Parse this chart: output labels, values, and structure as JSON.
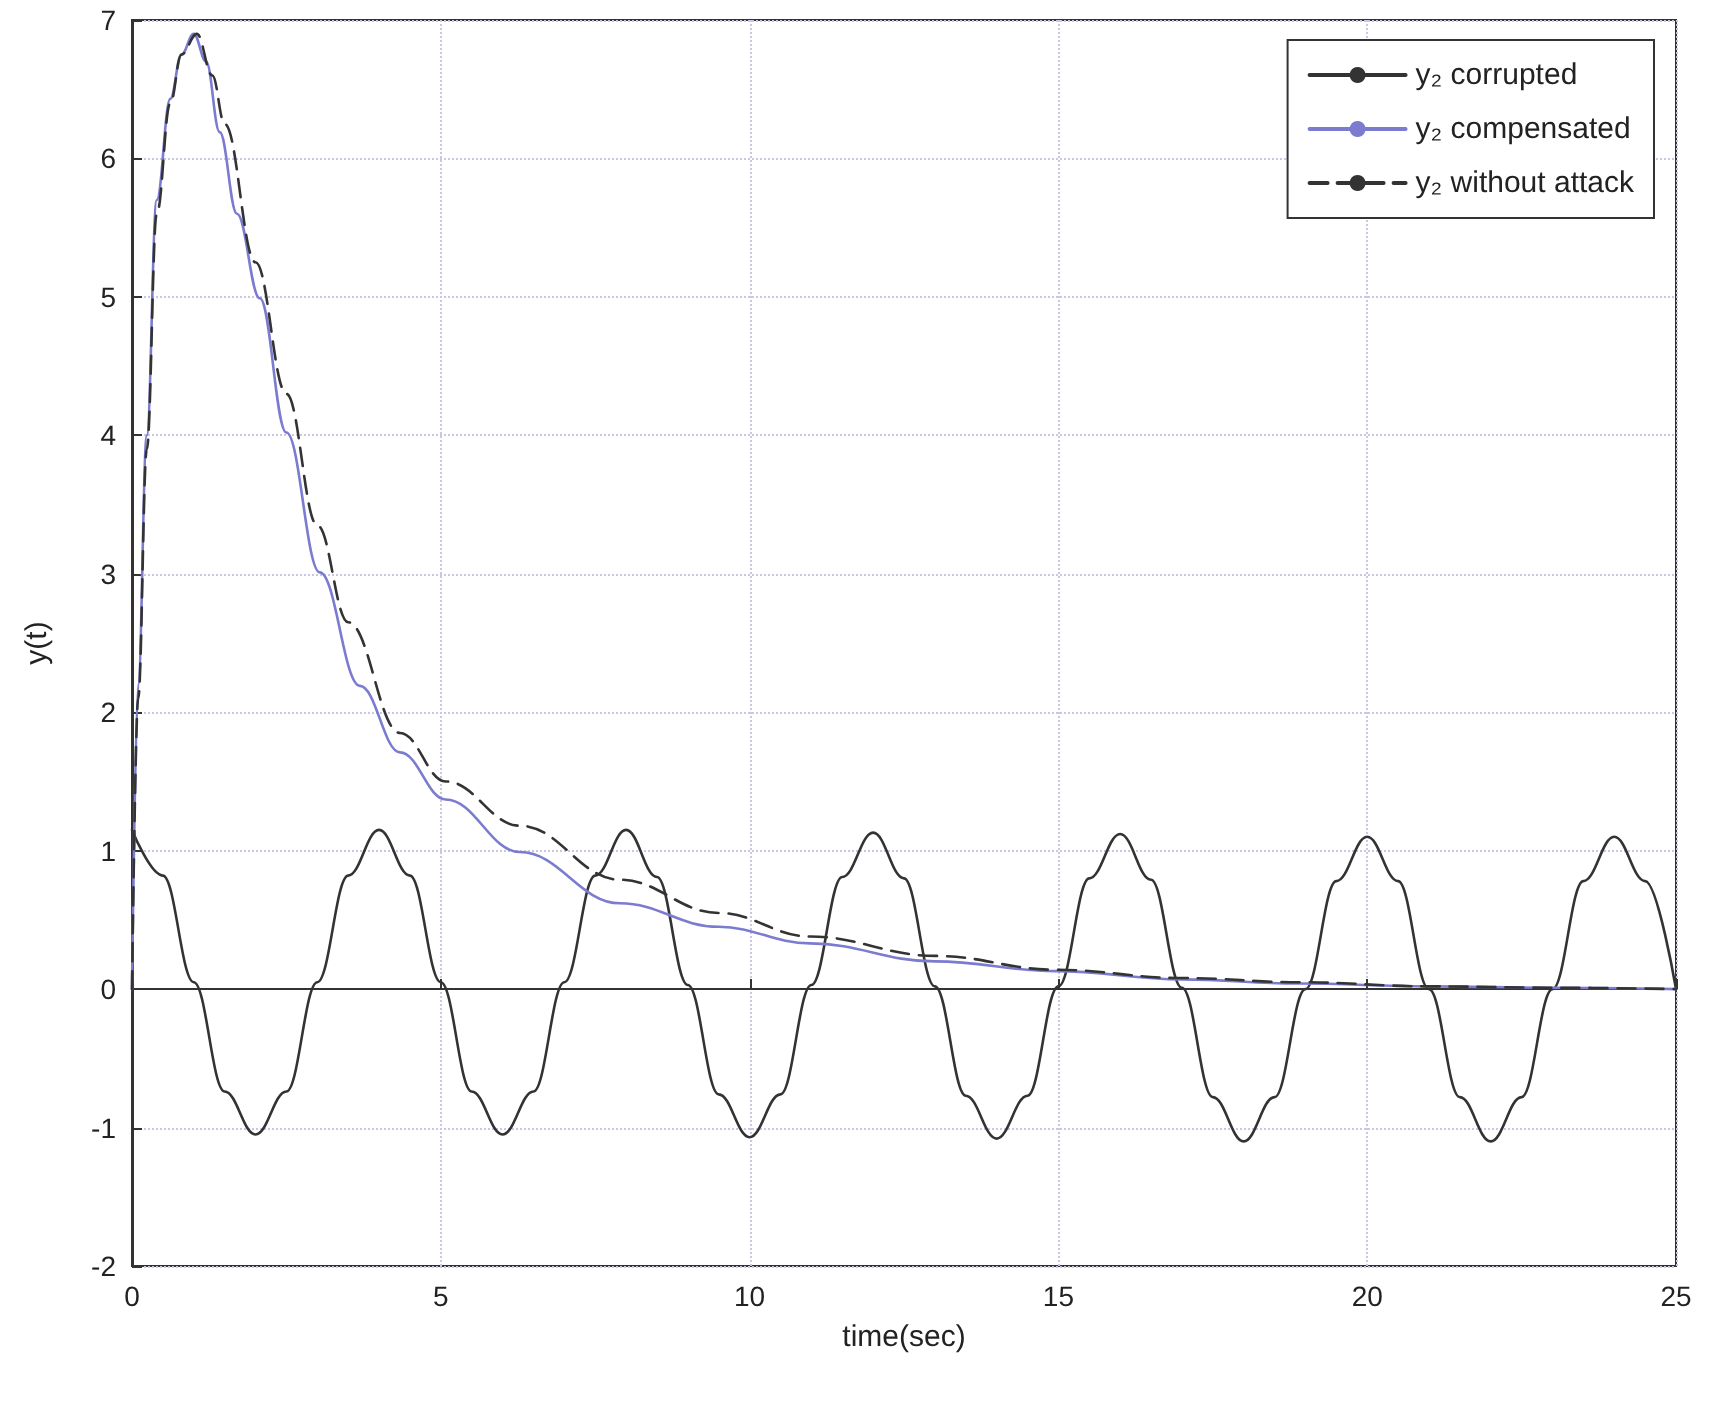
{
  "chart_data": {
    "type": "line",
    "xlabel": "time(sec)",
    "ylabel": "y(t)",
    "xlim": [
      0,
      25
    ],
    "xticks": [
      0,
      5,
      10,
      15,
      20,
      25
    ],
    "ylim": [
      -2,
      7
    ],
    "yticks": [
      -2,
      -1,
      0,
      1,
      2,
      3,
      4,
      5,
      6,
      7
    ],
    "grid": true,
    "legend": "top right",
    "series": [
      {
        "name": "y₂ corrupted",
        "color": "#333333",
        "line_style": "solid",
        "x": [
          0,
          0.5,
          1,
          1.5,
          2,
          2.5,
          3,
          3.5,
          4,
          4.5,
          5,
          5.5,
          6,
          6.5,
          7,
          7.5,
          8,
          8.5,
          9,
          9.5,
          10,
          10.5,
          11,
          11.5,
          12,
          12.5,
          13,
          13.5,
          14,
          14.5,
          15,
          15.5,
          16,
          16.5,
          17,
          17.5,
          18,
          18.5,
          19,
          19.5,
          20,
          20.5,
          21,
          21.5,
          22,
          22.5,
          23,
          23.5,
          24,
          24.5,
          25
        ],
        "values": [
          1.15,
          0.82,
          0.05,
          -0.74,
          -1.05,
          -0.74,
          0.05,
          0.82,
          1.15,
          0.82,
          0.05,
          -0.74,
          -1.05,
          -0.74,
          0.05,
          0.82,
          1.15,
          0.81,
          0.03,
          -0.76,
          -1.07,
          -0.76,
          0.03,
          0.81,
          1.13,
          0.8,
          0.02,
          -0.77,
          -1.08,
          -0.77,
          0.02,
          0.8,
          1.12,
          0.79,
          0.01,
          -0.78,
          -1.1,
          -0.78,
          0,
          0.78,
          1.1,
          0.78,
          0,
          -0.78,
          -1.1,
          -0.78,
          0,
          0.78,
          1.1,
          0.78,
          0
        ]
      },
      {
        "name": "y₂ compensated",
        "color": "#7b7bd0",
        "line_style": "solid",
        "x": [
          0,
          0.1,
          0.24,
          0.4,
          0.62,
          0.8,
          1,
          1.2,
          1.42,
          1.7,
          2.07,
          2.5,
          3.04,
          3.69,
          4.34,
          5.08,
          6.28,
          7.9,
          9.5,
          10.98,
          13,
          14.96,
          17,
          18.9,
          21,
          23,
          25
        ],
        "values": [
          0,
          2.2,
          4,
          5.7,
          6.43,
          6.75,
          6.9,
          6.7,
          6.19,
          5.6,
          4.99,
          4.02,
          3.01,
          2.19,
          1.71,
          1.37,
          0.99,
          0.62,
          0.45,
          0.33,
          0.2,
          0.13,
          0.07,
          0.04,
          0.02,
          0.01,
          0
        ]
      },
      {
        "name": "y₂ without attack",
        "color": "#333333",
        "line_style": "dashed",
        "x": [
          0,
          0.1,
          0.24,
          0.4,
          0.62,
          0.8,
          1.05,
          1.3,
          1.5,
          2,
          2.5,
          3,
          3.5,
          4.34,
          5.08,
          6.28,
          7.9,
          9.5,
          10.98,
          13,
          14.96,
          17,
          18.9,
          21,
          23,
          25
        ],
        "values": [
          0,
          2.1,
          3.9,
          5.6,
          6.4,
          6.75,
          6.9,
          6.6,
          6.25,
          5.25,
          4.3,
          3.35,
          2.65,
          1.85,
          1.5,
          1.18,
          0.79,
          0.55,
          0.38,
          0.24,
          0.14,
          0.08,
          0.05,
          0.02,
          0.01,
          0
        ]
      }
    ]
  }
}
